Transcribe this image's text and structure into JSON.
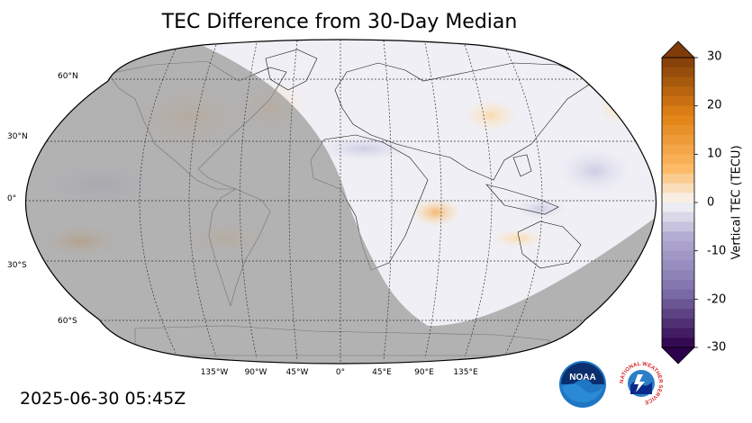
{
  "title": "TEC Difference from 30-Day Median",
  "timestamp": "2025-06-30 05:45Z",
  "projection": "robinson",
  "latitude_labels": [
    "60°N",
    "30°N",
    "0°",
    "30°S",
    "60°S"
  ],
  "longitude_labels": [
    "135°W",
    "90°W",
    "45°W",
    "0°",
    "45°E",
    "90°E",
    "135°E"
  ],
  "night_shading": "grey overlay on western hemisphere (Americas, Pacific, Antarctica)",
  "colorbar": {
    "label": "Vertical TEC (TECU)",
    "min": -30,
    "max": 30,
    "ticks": [
      "30",
      "20",
      "10",
      "0",
      "-10",
      "-20",
      "-30"
    ],
    "extend": "both",
    "colors": {
      "max": "#7f3b08",
      "high": "#e08214",
      "mid_high": "#fdb863",
      "zero": "#f7f7f7",
      "mid_low": "#b2abd2",
      "low": "#8073ac",
      "min": "#2d004b"
    }
  },
  "logos": {
    "noaa": {
      "text": "NOAA"
    },
    "nws": {
      "text": "NATIONAL WEATHER SERVICE"
    }
  }
}
